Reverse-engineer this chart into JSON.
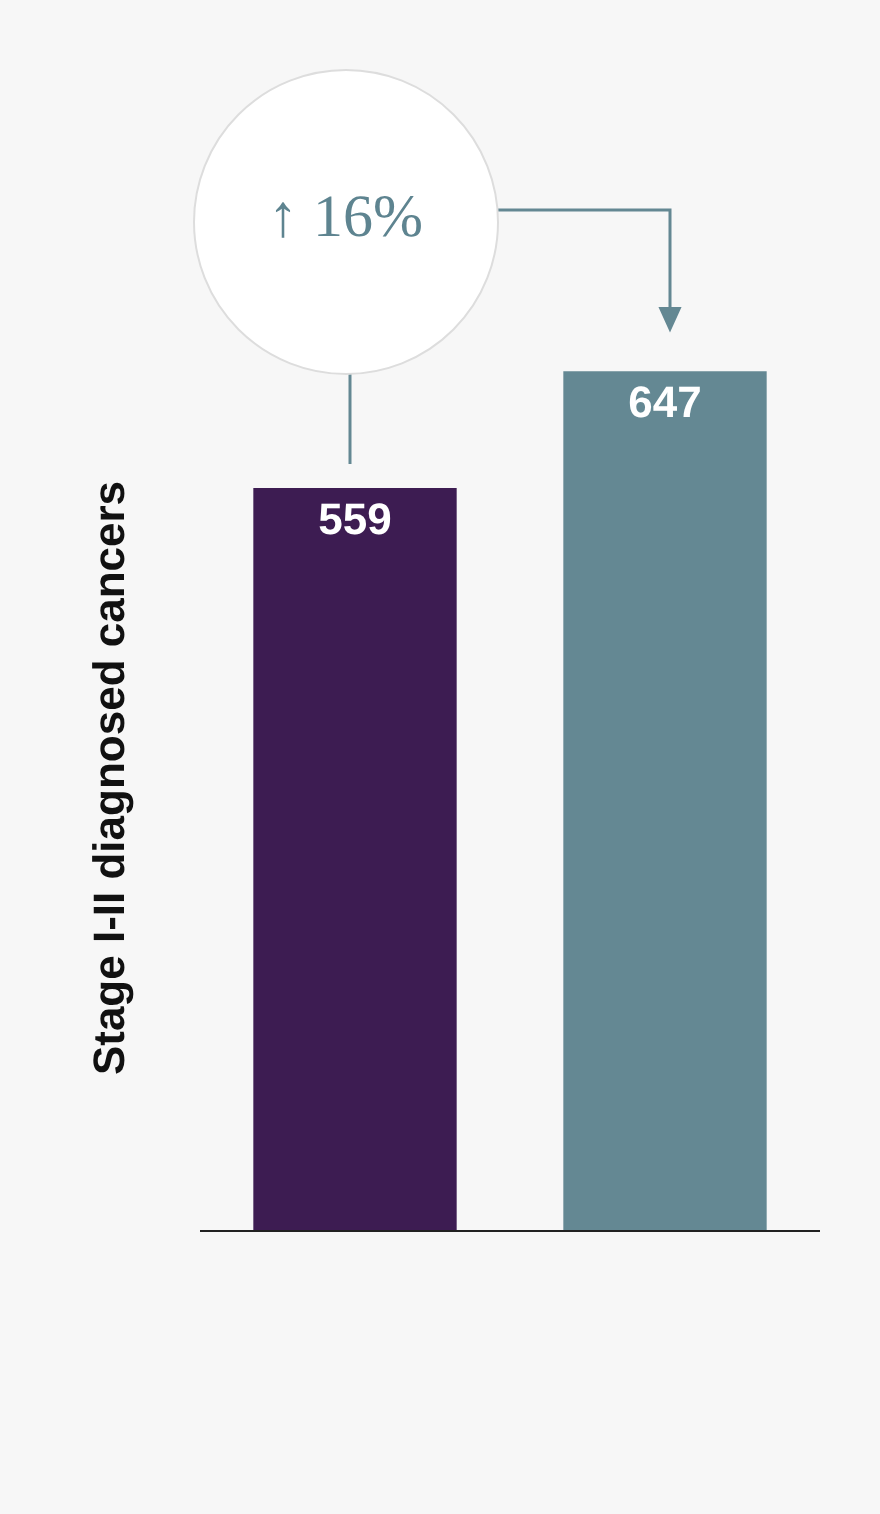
{
  "chart_data": {
    "type": "bar",
    "ylabel": "Stage I-II diagnosed cancers",
    "categories": [
      null,
      null
    ],
    "values": [
      559,
      647
    ],
    "colors": [
      "#3d1c52",
      "#648893"
    ],
    "data_labels": true,
    "grid": false,
    "tick_labels": false,
    "annotations": [
      "↑ 16%"
    ]
  }
}
